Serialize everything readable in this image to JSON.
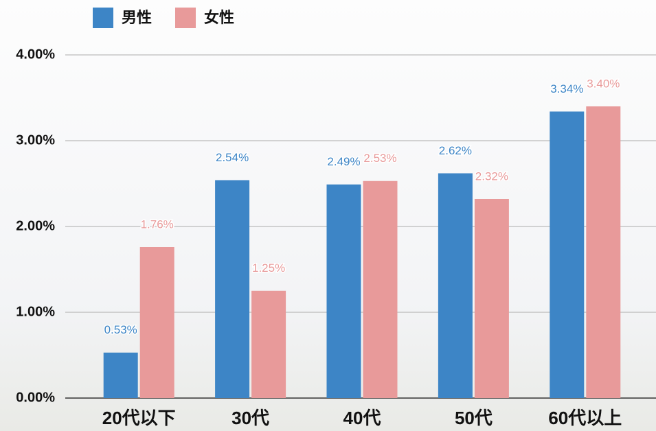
{
  "chart_data": {
    "type": "bar",
    "categories": [
      "20代以下",
      "30代",
      "40代",
      "50代",
      "60代以上"
    ],
    "series": [
      {
        "name": "男性",
        "color": "#3d85c6",
        "values": [
          0.53,
          2.54,
          2.49,
          2.62,
          3.34
        ],
        "value_labels": [
          "0.53%",
          "2.54%",
          "2.49%",
          "2.62%",
          "3.34%"
        ]
      },
      {
        "name": "女性",
        "color": "#e89a9a",
        "values": [
          1.76,
          1.25,
          2.53,
          2.32,
          3.4
        ],
        "value_labels": [
          "1.76%",
          "1.25%",
          "2.53%",
          "2.32%",
          "3.40%"
        ]
      }
    ],
    "ylim": [
      0,
      4
    ],
    "yticks": [
      {
        "value": 0,
        "label": "0.00%"
      },
      {
        "value": 1,
        "label": "1.00%"
      },
      {
        "value": 2,
        "label": "2.00%"
      },
      {
        "value": 3,
        "label": "3.00%"
      },
      {
        "value": 4,
        "label": "4.00%"
      }
    ],
    "grid": true,
    "legend": "top"
  }
}
